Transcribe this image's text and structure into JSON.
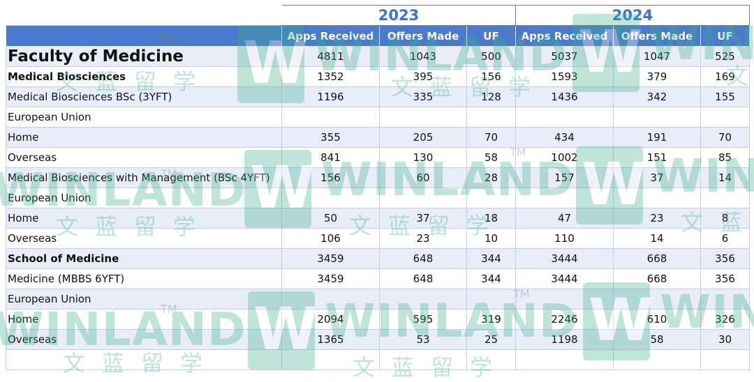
{
  "table": {
    "years": [
      "2023",
      "2024"
    ],
    "columns": [
      "Apps Received",
      "Offers Made",
      "UF",
      "Apps Received",
      "Offers Made",
      "UF"
    ],
    "rows": [
      {
        "label": "Faculty of Medicine",
        "values": [
          "4811",
          "1043",
          "500",
          "5037",
          "1047",
          "525"
        ]
      },
      {
        "label": "Medical Biosciences",
        "values": [
          "1352",
          "395",
          "156",
          "1593",
          "379",
          "169"
        ]
      },
      {
        "label": "Medical Biosciences BSc (3YFT)",
        "values": [
          "1196",
          "335",
          "128",
          "1436",
          "342",
          "155"
        ]
      },
      {
        "label": "European Union",
        "values": [
          "",
          "",
          "",
          "",
          "",
          ""
        ]
      },
      {
        "label": "Home",
        "values": [
          "355",
          "205",
          "70",
          "434",
          "191",
          "70"
        ]
      },
      {
        "label": "Overseas",
        "values": [
          "841",
          "130",
          "58",
          "1002",
          "151",
          "85"
        ]
      },
      {
        "label": "Medical Biosciences with Management (BSc 4YFT)",
        "values": [
          "156",
          "60",
          "28",
          "157",
          "37",
          "14"
        ]
      },
      {
        "label": "European Union",
        "values": [
          "",
          "",
          "",
          "",
          "",
          ""
        ]
      },
      {
        "label": "Home",
        "values": [
          "50",
          "37",
          "18",
          "47",
          "23",
          "8"
        ]
      },
      {
        "label": "Overseas",
        "values": [
          "106",
          "23",
          "10",
          "110",
          "14",
          "6"
        ]
      },
      {
        "label": "School of Medicine",
        "values": [
          "3459",
          "648",
          "344",
          "3444",
          "668",
          "356"
        ]
      },
      {
        "label": "Medicine (MBBS 6YFT)",
        "values": [
          "3459",
          "648",
          "344",
          "3444",
          "668",
          "356"
        ]
      },
      {
        "label": "European Union",
        "values": [
          "",
          "",
          "",
          "",
          "",
          ""
        ]
      },
      {
        "label": "Home",
        "values": [
          "2094",
          "595",
          "319",
          "2246",
          "610",
          "326"
        ]
      },
      {
        "label": "Overseas",
        "values": [
          "1365",
          "53",
          "25",
          "1198",
          "58",
          "30"
        ]
      }
    ]
  },
  "watermark": {
    "brand": "WINLAND",
    "trademark": "TM",
    "chinese": "文蓝留学",
    "logo_letter": "W"
  },
  "colors": {
    "header_bg": "#4a7acd",
    "year_text": "#3a73c8",
    "band_bg": "#e9edf8",
    "watermark": "#3fae8e"
  }
}
